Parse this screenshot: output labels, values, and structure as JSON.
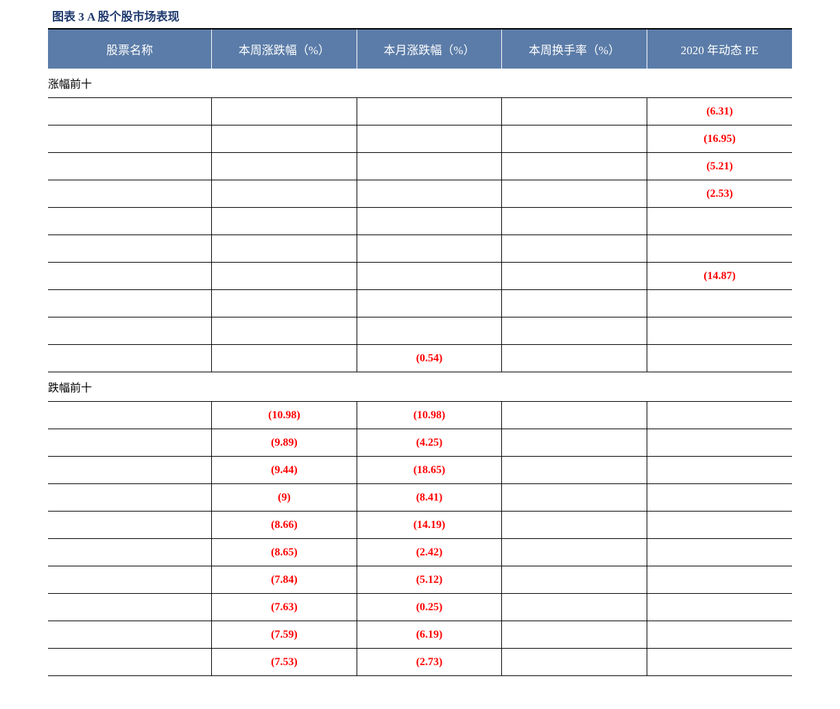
{
  "title": "图表 3 A 股个股市场表现",
  "title_color": "#1f3a6e",
  "header_bg": "#5b7ca8",
  "header_fg": "#ffffff",
  "neg_color": "#ff0000",
  "columns": [
    "股票名称",
    "本周涨跌幅（%）",
    "本月涨跌幅（%）",
    "本周换手率（%）",
    "2020 年动态 PE"
  ],
  "sections": [
    {
      "label": "涨幅前十",
      "rows": [
        {
          "name": "",
          "week_chg": "",
          "month_chg": "",
          "turnover": "",
          "pe": "(6.31)",
          "pe_neg": true
        },
        {
          "name": "",
          "week_chg": "",
          "month_chg": "",
          "turnover": "",
          "pe": "(16.95)",
          "pe_neg": true
        },
        {
          "name": "",
          "week_chg": "",
          "month_chg": "",
          "turnover": "",
          "pe": "(5.21)",
          "pe_neg": true
        },
        {
          "name": "",
          "week_chg": "",
          "month_chg": "",
          "turnover": "",
          "pe": "(2.53)",
          "pe_neg": true
        },
        {
          "name": "",
          "week_chg": "",
          "month_chg": "",
          "turnover": "",
          "pe": ""
        },
        {
          "name": "",
          "week_chg": "",
          "month_chg": "",
          "turnover": "",
          "pe": ""
        },
        {
          "name": "",
          "week_chg": "",
          "month_chg": "",
          "turnover": "",
          "pe": "(14.87)",
          "pe_neg": true
        },
        {
          "name": "",
          "week_chg": "",
          "month_chg": "",
          "turnover": "",
          "pe": ""
        },
        {
          "name": "",
          "week_chg": "",
          "month_chg": "",
          "turnover": "",
          "pe": ""
        },
        {
          "name": "",
          "week_chg": "",
          "month_chg": "(0.54)",
          "month_neg": true,
          "turnover": "",
          "pe": ""
        }
      ]
    },
    {
      "label": "跌幅前十",
      "rows": [
        {
          "name": "",
          "week_chg": "(10.98)",
          "week_neg": true,
          "month_chg": "(10.98)",
          "month_neg": true,
          "turnover": "",
          "pe": ""
        },
        {
          "name": "",
          "week_chg": "(9.89)",
          "week_neg": true,
          "month_chg": "(4.25)",
          "month_neg": true,
          "turnover": "",
          "pe": ""
        },
        {
          "name": "",
          "week_chg": "(9.44)",
          "week_neg": true,
          "month_chg": "(18.65)",
          "month_neg": true,
          "turnover": "",
          "pe": ""
        },
        {
          "name": "",
          "week_chg": "(9)",
          "week_neg": true,
          "month_chg": "(8.41)",
          "month_neg": true,
          "turnover": "",
          "pe": ""
        },
        {
          "name": "",
          "week_chg": "(8.66)",
          "week_neg": true,
          "month_chg": "(14.19)",
          "month_neg": true,
          "turnover": "",
          "pe": ""
        },
        {
          "name": "",
          "week_chg": "(8.65)",
          "week_neg": true,
          "month_chg": "(2.42)",
          "month_neg": true,
          "turnover": "",
          "pe": ""
        },
        {
          "name": "",
          "week_chg": "(7.84)",
          "week_neg": true,
          "month_chg": "(5.12)",
          "month_neg": true,
          "turnover": "",
          "pe": ""
        },
        {
          "name": "",
          "week_chg": "(7.63)",
          "week_neg": true,
          "month_chg": "(0.25)",
          "month_neg": true,
          "turnover": "",
          "pe": ""
        },
        {
          "name": "",
          "week_chg": "(7.59)",
          "week_neg": true,
          "month_chg": "(6.19)",
          "month_neg": true,
          "turnover": "",
          "pe": ""
        },
        {
          "name": "",
          "week_chg": "(7.53)",
          "week_neg": true,
          "month_chg": "(2.73)",
          "month_neg": true,
          "turnover": "",
          "pe": ""
        }
      ]
    }
  ]
}
